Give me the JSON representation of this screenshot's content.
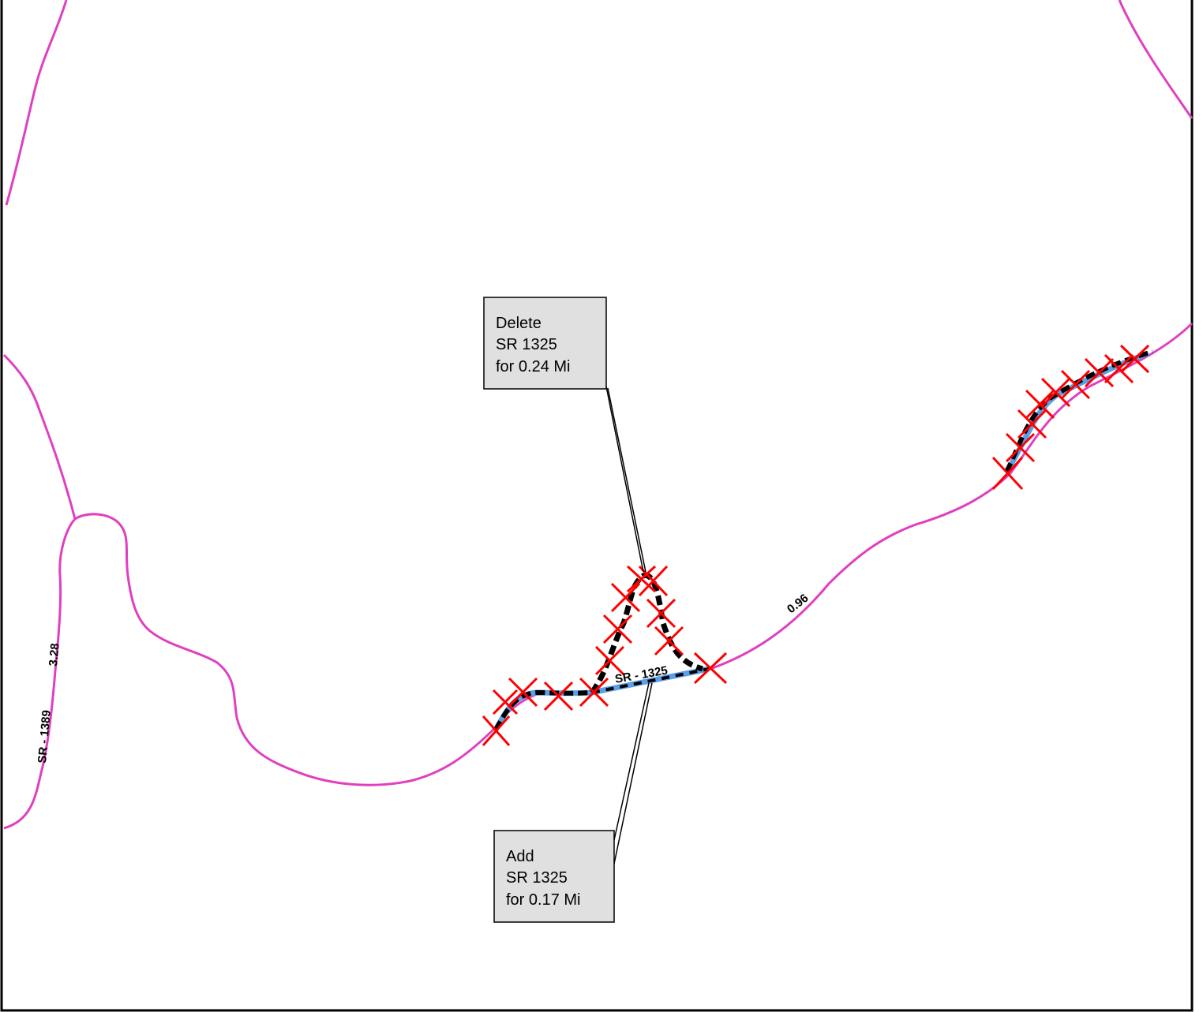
{
  "map": {
    "colors": {
      "road": "#e040c0",
      "deleted_marker": "#ff0000",
      "added_segment": "#5aa0e8",
      "dash": "#000000",
      "callout_fill": "#e0e0e0",
      "frame": "#000000"
    },
    "road_labels": [
      {
        "text": "SR - 1389"
      },
      {
        "text": "3.28"
      },
      {
        "text": "SR - 1325"
      },
      {
        "text": "0.96"
      }
    ],
    "callouts": {
      "delete": {
        "line1": "Delete",
        "line2": "SR 1325",
        "line3": "for 0.24 Mi"
      },
      "add": {
        "line1": "Add",
        "line2": "SR 1325",
        "line3": "for 0.17 Mi"
      }
    }
  }
}
